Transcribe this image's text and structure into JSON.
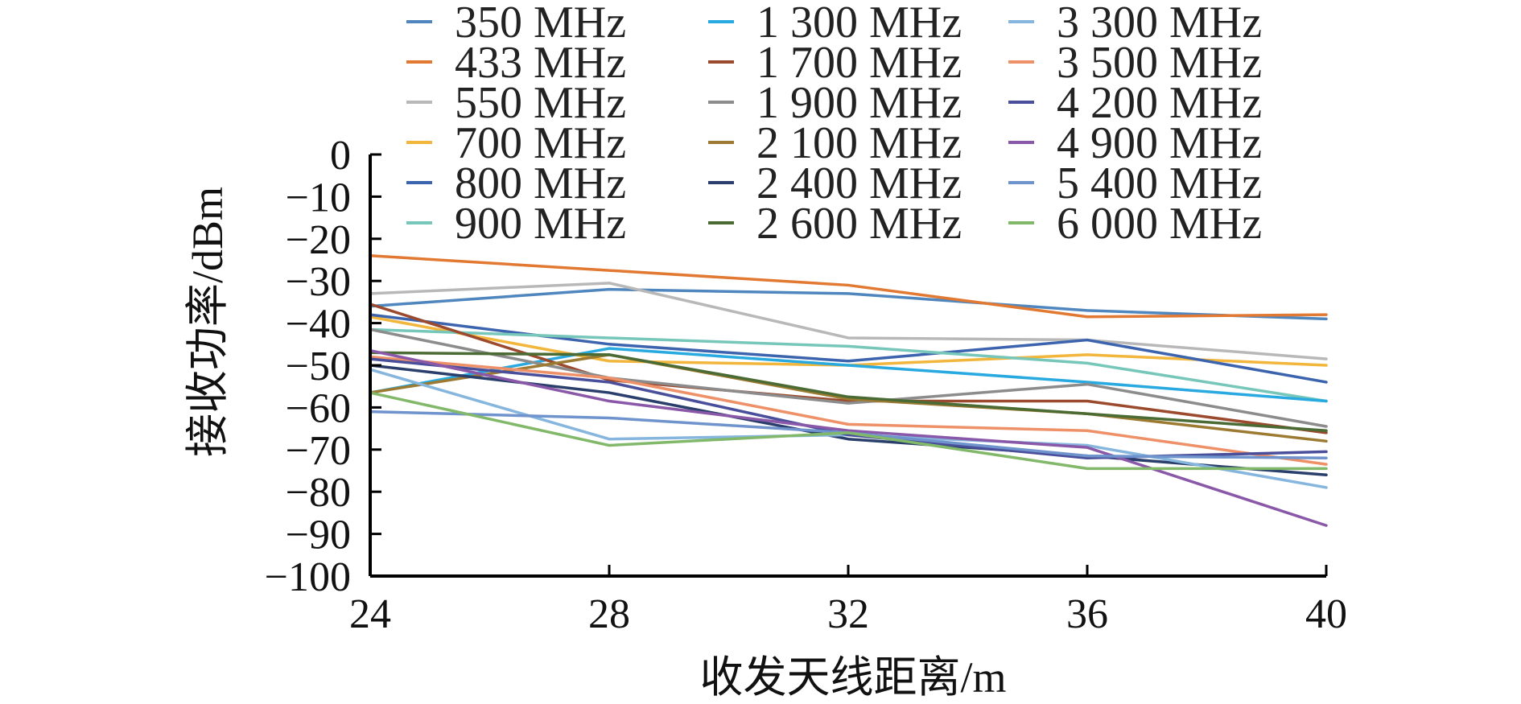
{
  "chart_data": {
    "type": "line",
    "title": "",
    "xlabel": "收发天线距离/m",
    "ylabel": "接收功率/dBm",
    "x": [
      24,
      28,
      32,
      36,
      40
    ],
    "xlim": [
      24,
      40
    ],
    "ylim": [
      -100,
      0
    ],
    "x_ticks": [
      "24",
      "28",
      "32",
      "36",
      "40"
    ],
    "y_ticks": [
      "0",
      "−10",
      "−20",
      "−30",
      "−40",
      "−50",
      "−60",
      "−70",
      "−80",
      "−90",
      "−100"
    ],
    "grid": false,
    "legend_position": "top",
    "series": [
      {
        "name": "350 MHz",
        "color": "#4f86be",
        "values": [
          -36,
          -32,
          -33,
          -37,
          -39
        ]
      },
      {
        "name": "433 MHz",
        "color": "#e27933",
        "values": [
          -24,
          -27.5,
          -31,
          -38.5,
          -38
        ]
      },
      {
        "name": "550 MHz",
        "color": "#b8b8b8",
        "values": [
          -33,
          -30.5,
          -43.5,
          -44,
          -48.5
        ]
      },
      {
        "name": "700 MHz",
        "color": "#f2b63c",
        "values": [
          -38.5,
          -49,
          -50,
          -47.5,
          -50
        ]
      },
      {
        "name": "800 MHz",
        "color": "#3c63ad",
        "values": [
          -38,
          -45,
          -49,
          -44,
          -54
        ]
      },
      {
        "name": "900 MHz",
        "color": "#76c7b9",
        "values": [
          -41.5,
          -43.5,
          -45.5,
          -49.5,
          -58.5
        ]
      },
      {
        "name": "1 300 MHz",
        "color": "#28a9e0",
        "values": [
          -56.5,
          -46,
          -50,
          -54,
          -58.5
        ]
      },
      {
        "name": "1 700 MHz",
        "color": "#9c4a2e",
        "values": [
          -35.5,
          -53.5,
          -58.5,
          -58.5,
          -66
        ]
      },
      {
        "name": "1 900 MHz",
        "color": "#8c8c8c",
        "values": [
          -41.5,
          -53,
          -59,
          -54.5,
          -64.5
        ]
      },
      {
        "name": "2 100 MHz",
        "color": "#9c7a32",
        "values": [
          -56.5,
          -47.5,
          -58,
          -61.5,
          -68
        ]
      },
      {
        "name": "2 400 MHz",
        "color": "#2a3f6b",
        "values": [
          -50,
          -56.5,
          -67.5,
          -71.5,
          -76
        ]
      },
      {
        "name": "2 600 MHz",
        "color": "#4a6b33",
        "values": [
          -47,
          -47.5,
          -57.5,
          -61.5,
          -65.5
        ]
      },
      {
        "name": "3 300 MHz",
        "color": "#86b6de",
        "values": [
          -51,
          -67.5,
          -66.5,
          -69,
          -79
        ]
      },
      {
        "name": "3 500 MHz",
        "color": "#ee9068",
        "values": [
          -48,
          -53,
          -64,
          -65.5,
          -73.5
        ]
      },
      {
        "name": "4 200 MHz",
        "color": "#4a4f9b",
        "values": [
          -48.5,
          -54,
          -66.5,
          -72,
          -70.5
        ]
      },
      {
        "name": "4 900 MHz",
        "color": "#8a58a8",
        "values": [
          -46.5,
          -58.5,
          -65.5,
          -69.5,
          -88
        ]
      },
      {
        "name": "5 400 MHz",
        "color": "#6f93cc",
        "values": [
          -61,
          -62.5,
          -66,
          -71.5,
          -72
        ]
      },
      {
        "name": "6 000 MHz",
        "color": "#82b86a",
        "values": [
          -56.5,
          -69,
          -66,
          -74.5,
          -74.5
        ]
      }
    ]
  }
}
